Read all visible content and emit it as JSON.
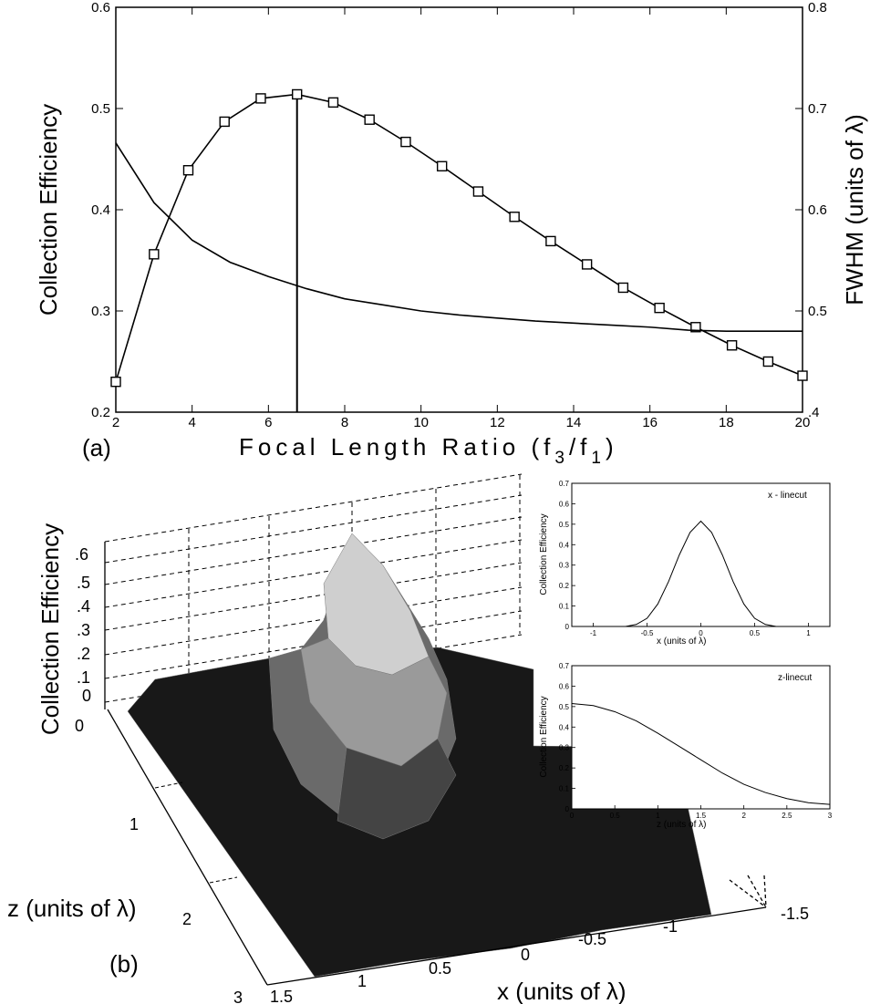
{
  "chart_data": [
    {
      "panel_label": "(a)",
      "type": "line",
      "xlabel_main": "Focal Length Ratio (f",
      "xlabel_sub1": "3",
      "xlabel_mid": "/f",
      "xlabel_sub2": "1",
      "xlabel_end": ")",
      "ylabel_left": "Collection Efficiency",
      "ylabel_right": "FWHM (units of λ)",
      "xlim": [
        2,
        20
      ],
      "ylim_left": [
        0.2,
        0.6
      ],
      "ylim_right": [
        0.4,
        0.8
      ],
      "x_ticks": [
        "2",
        "4",
        "6",
        "8",
        "10",
        "12",
        "14",
        "16",
        "18",
        "20"
      ],
      "y_ticks_left": [
        "0.2",
        "0.3",
        "0.4",
        "0.5",
        "0.6"
      ],
      "y_ticks_right": [
        ".4",
        "0.5",
        "0.6",
        "0.7",
        "0.8"
      ],
      "optimum_x": 6.75,
      "series": [
        {
          "axis": "left",
          "marker": "square",
          "x": [
            2,
            3,
            3.9,
            4.85,
            5.8,
            6.75,
            7.7,
            8.65,
            9.6,
            10.55,
            11.5,
            12.45,
            13.4,
            14.35,
            15.3,
            16.25,
            17.2,
            18.15,
            19.1,
            20
          ],
          "y": [
            0.23,
            0.356,
            0.439,
            0.487,
            0.51,
            0.514,
            0.506,
            0.489,
            0.467,
            0.443,
            0.418,
            0.393,
            0.369,
            0.346,
            0.323,
            0.303,
            0.284,
            0.266,
            0.25,
            0.236
          ]
        },
        {
          "axis": "right",
          "marker": "none",
          "x": [
            2,
            3,
            4,
            5,
            6,
            7,
            8,
            9,
            10,
            11,
            12,
            13,
            14,
            15,
            16,
            17,
            18,
            19,
            20
          ],
          "y": [
            0.666,
            0.607,
            0.57,
            0.548,
            0.534,
            0.522,
            0.512,
            0.506,
            0.5,
            0.496,
            0.493,
            0.49,
            0.488,
            0.486,
            0.484,
            0.481,
            0.48,
            0.48,
            0.48
          ]
        }
      ]
    },
    {
      "panel_label": "(b)",
      "type": "surface",
      "zlabel": "Collection Efficiency",
      "z_ticks": [
        ".6",
        ".5",
        ".4",
        ".3",
        ".2",
        ".1",
        "0"
      ],
      "depth_label": "z (units of λ)",
      "depth_ticks": [
        "0",
        "1",
        "2",
        "3"
      ],
      "xlabel": "x (units of λ)",
      "x_ticks": [
        "1.5",
        "1",
        "0.5",
        "0",
        "-0.5",
        "-1",
        "-1.5"
      ],
      "peak_value": 0.52,
      "peak_location": {
        "x": 0,
        "z": 0
      }
    },
    {
      "type": "line",
      "annotation": "x - linecut",
      "xlabel": "x (units of λ)",
      "ylabel": "Collection Efficiency",
      "xlim": [
        -1.2,
        1.2
      ],
      "ylim": [
        0,
        0.7
      ],
      "x_ticks": [
        "-1",
        "-0.5",
        "0",
        "0.5",
        "1"
      ],
      "y_ticks": [
        "0",
        "0.1",
        "0.2",
        "0.3",
        "0.4",
        "0.5",
        "0.6",
        "0.7"
      ],
      "series": [
        {
          "x": [
            -1.2,
            -0.7,
            -0.6,
            -0.5,
            -0.4,
            -0.3,
            -0.2,
            -0.1,
            0,
            0.1,
            0.2,
            0.3,
            0.4,
            0.5,
            0.6,
            0.7,
            1.2
          ],
          "y": [
            0,
            0,
            0.01,
            0.04,
            0.11,
            0.22,
            0.35,
            0.46,
            0.515,
            0.46,
            0.35,
            0.22,
            0.11,
            0.04,
            0.01,
            0,
            0
          ]
        }
      ]
    },
    {
      "type": "line",
      "annotation": "z-linecut",
      "xlabel": "z (units of λ)",
      "ylabel": "Collection Efficiency",
      "xlim": [
        0,
        3
      ],
      "ylim": [
        0,
        0.7
      ],
      "x_ticks": [
        "0",
        "0.5",
        "1",
        "1.5",
        "2",
        "2.5",
        "3"
      ],
      "y_ticks": [
        "0",
        "0.1",
        "0.2",
        "0.3",
        "0.4",
        "0.5",
        "0.6",
        "0.7"
      ],
      "series": [
        {
          "x": [
            0,
            0.25,
            0.5,
            0.75,
            1.0,
            1.25,
            1.5,
            1.75,
            2.0,
            2.25,
            2.5,
            2.75,
            3.0
          ],
          "y": [
            0.515,
            0.505,
            0.475,
            0.43,
            0.37,
            0.305,
            0.24,
            0.175,
            0.12,
            0.08,
            0.05,
            0.03,
            0.022
          ]
        }
      ]
    }
  ]
}
